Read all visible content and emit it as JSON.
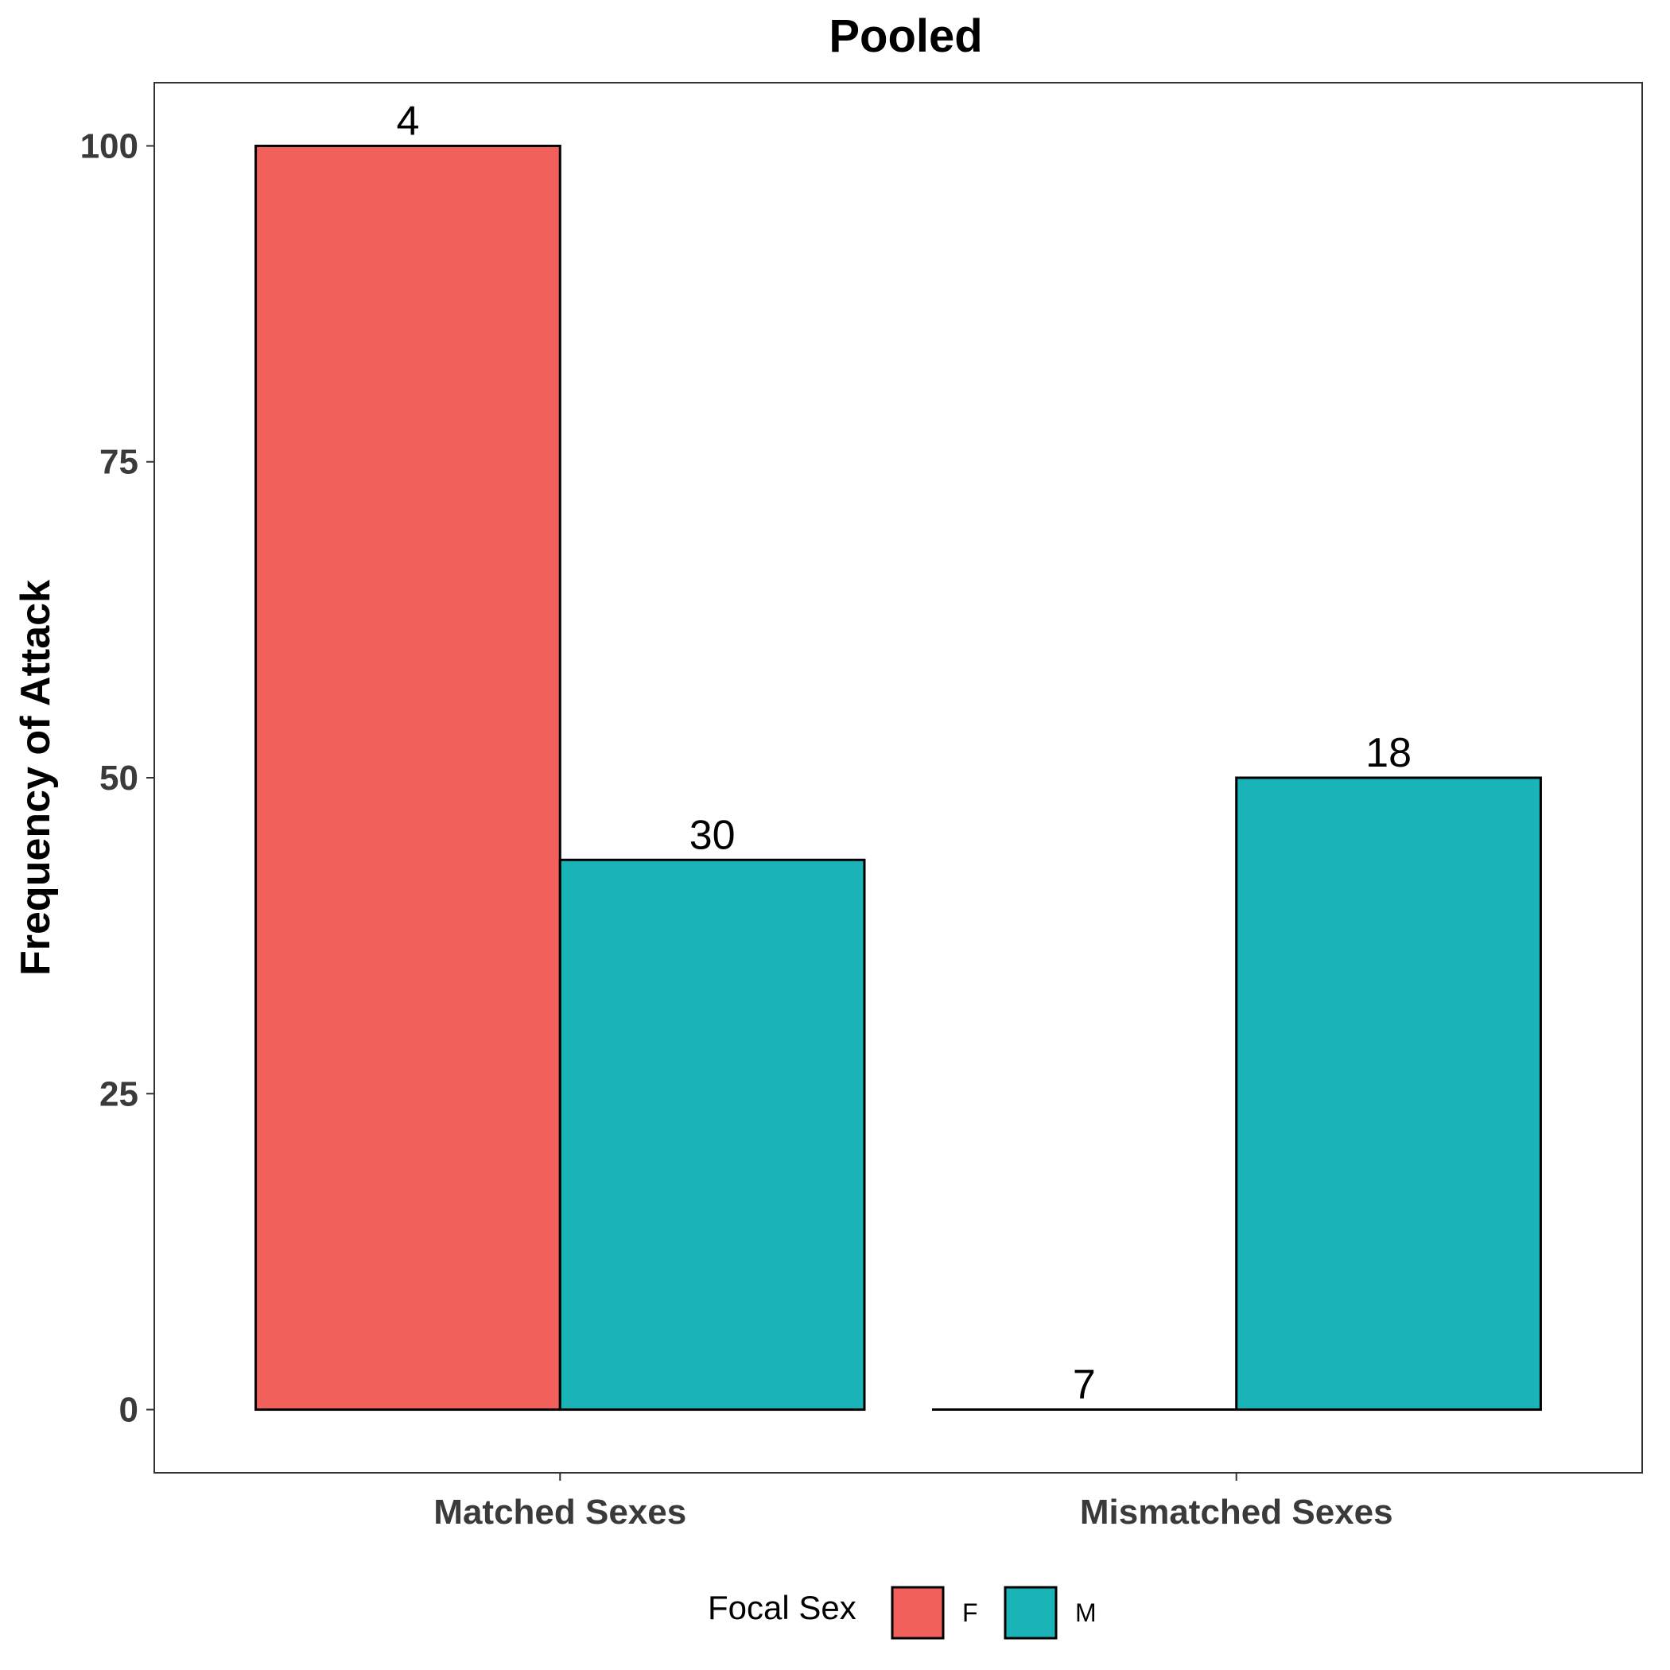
{
  "chart_data": {
    "type": "bar",
    "title": "Pooled",
    "xlabel": "",
    "ylabel": "Frequency of Attack",
    "categories": [
      "Matched Sexes",
      "Mismatched Sexes"
    ],
    "ylim": [
      -5,
      105
    ],
    "yticks": [
      0,
      25,
      50,
      75,
      100
    ],
    "grid": false,
    "legend": {
      "title": "Focal Sex",
      "position": "bottom"
    },
    "series": [
      {
        "name": "F",
        "color": "#F2605B",
        "values": [
          100,
          0
        ],
        "labels": [
          "4",
          "7"
        ]
      },
      {
        "name": "M",
        "color": "#1AB3B7",
        "values": [
          43.5,
          50
        ],
        "labels": [
          "30",
          "18"
        ]
      }
    ]
  }
}
